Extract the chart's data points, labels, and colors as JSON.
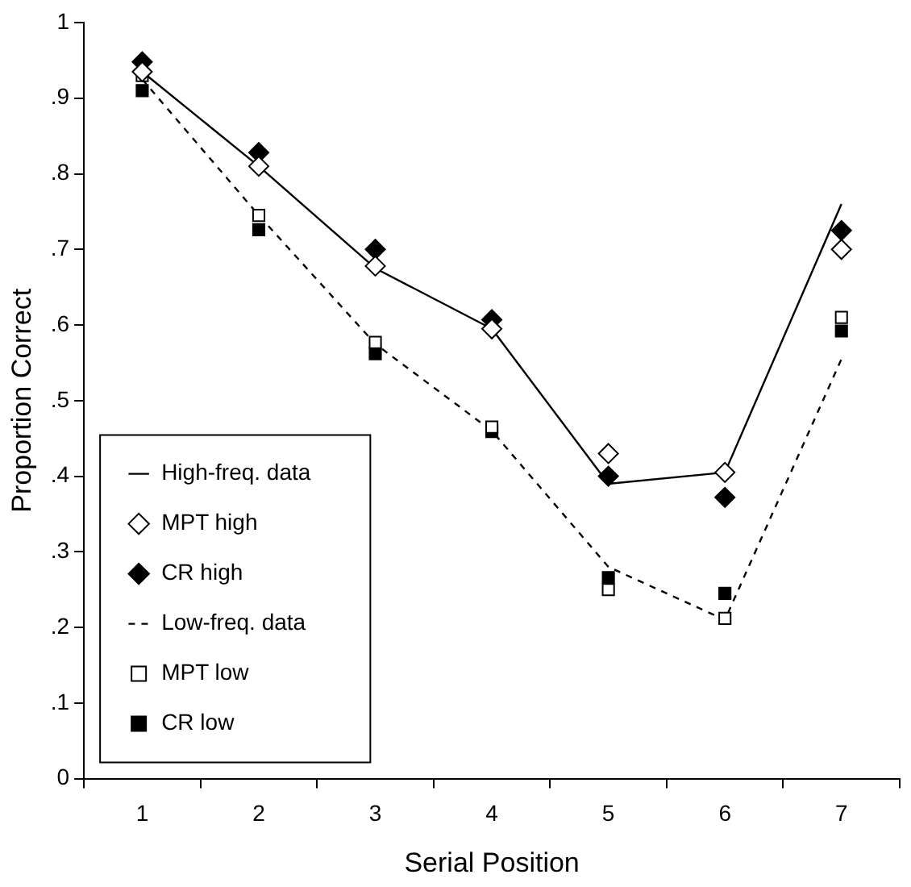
{
  "chart_data": {
    "type": "line",
    "xlabel": "Serial Position",
    "ylabel": "Proportion Correct",
    "categories": [
      "1",
      "2",
      "3",
      "4",
      "5",
      "6",
      "7"
    ],
    "ylim": [
      0,
      1
    ],
    "yticks": [
      0,
      {
        "value": 0.1,
        "label": ".1"
      },
      {
        "value": 0.2,
        "label": ".2"
      },
      {
        "value": 0.3,
        "label": ".3"
      },
      {
        "value": 0.4,
        "label": ".4"
      },
      {
        "value": 0.5,
        "label": ".5"
      },
      {
        "value": 0.6,
        "label": ".6"
      },
      {
        "value": 0.7,
        "label": ".7"
      },
      {
        "value": 0.8,
        "label": ".8"
      },
      {
        "value": 0.9,
        "label": ".9"
      },
      1
    ],
    "legend": "bottom left",
    "grid": false,
    "series": [
      {
        "name": "High-freq. data",
        "type": "line",
        "line_style": "solid",
        "marker": "none",
        "color": "#000000",
        "values": [
          0.935,
          0.81,
          0.675,
          0.595,
          0.39,
          0.405,
          0.76
        ]
      },
      {
        "name": "MPT high",
        "type": "scatter",
        "marker": "diamond",
        "color": "#ffffff",
        "values": [
          0.935,
          0.81,
          0.678,
          0.595,
          0.43,
          0.405,
          0.7
        ]
      },
      {
        "name": "CR high",
        "type": "scatter",
        "marker": "diamond",
        "color": "#000000",
        "values": [
          0.948,
          0.828,
          0.7,
          0.607,
          0.4,
          0.372,
          0.725
        ]
      },
      {
        "name": "Low-freq. data",
        "type": "line",
        "line_style": "dashed",
        "marker": "none",
        "color": "#000000",
        "values": [
          0.925,
          0.745,
          0.575,
          0.46,
          0.28,
          0.21,
          0.555
        ]
      },
      {
        "name": "MPT low",
        "type": "scatter",
        "marker": "square",
        "color": "#ffffff",
        "values": [
          0.93,
          0.745,
          0.577,
          0.465,
          0.25,
          0.212,
          0.61
        ]
      },
      {
        "name": "CR low",
        "type": "scatter",
        "marker": "square",
        "color": "#000000",
        "values": [
          0.91,
          0.726,
          0.562,
          0.459,
          0.266,
          0.245,
          0.592
        ]
      }
    ]
  }
}
